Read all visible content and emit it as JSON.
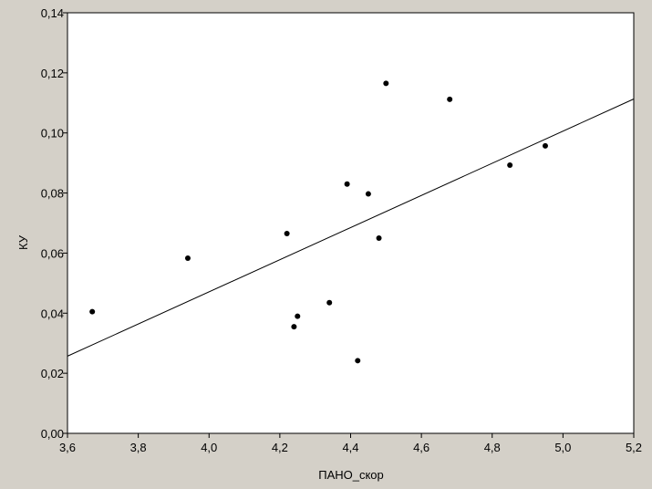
{
  "chart_data": {
    "type": "scatter",
    "title": "",
    "xlabel": "ПАНО_скор",
    "ylabel": "КУ",
    "xlim": [
      3.6,
      5.2
    ],
    "ylim": [
      0.0,
      0.14
    ],
    "x_ticks": [
      "3,6",
      "3,8",
      "4,0",
      "4,2",
      "4,4",
      "4,6",
      "4,8",
      "5,0",
      "5,2"
    ],
    "y_ticks": [
      "0,00",
      "0,02",
      "0,04",
      "0,06",
      "0,08",
      "0,10",
      "0,12",
      "0,14"
    ],
    "grid": false,
    "series": [
      {
        "points": [
          {
            "x": 3.67,
            "y": 0.0405
          },
          {
            "x": 3.94,
            "y": 0.0583
          },
          {
            "x": 4.22,
            "y": 0.0665
          },
          {
            "x": 4.24,
            "y": 0.0355
          },
          {
            "x": 4.25,
            "y": 0.039
          },
          {
            "x": 4.34,
            "y": 0.0435
          },
          {
            "x": 4.39,
            "y": 0.083
          },
          {
            "x": 4.42,
            "y": 0.0242
          },
          {
            "x": 4.45,
            "y": 0.0797
          },
          {
            "x": 4.48,
            "y": 0.065
          },
          {
            "x": 4.5,
            "y": 0.1165
          },
          {
            "x": 4.68,
            "y": 0.1112
          },
          {
            "x": 4.85,
            "y": 0.0893
          },
          {
            "x": 4.95,
            "y": 0.0957
          }
        ]
      }
    ],
    "regression_line": {
      "x": [
        3.6,
        5.2
      ],
      "y": [
        0.0257,
        0.1113
      ]
    }
  },
  "colors": {
    "background": "#d4d0c8",
    "plot_background": "#ffffff",
    "ink": "#000000"
  }
}
